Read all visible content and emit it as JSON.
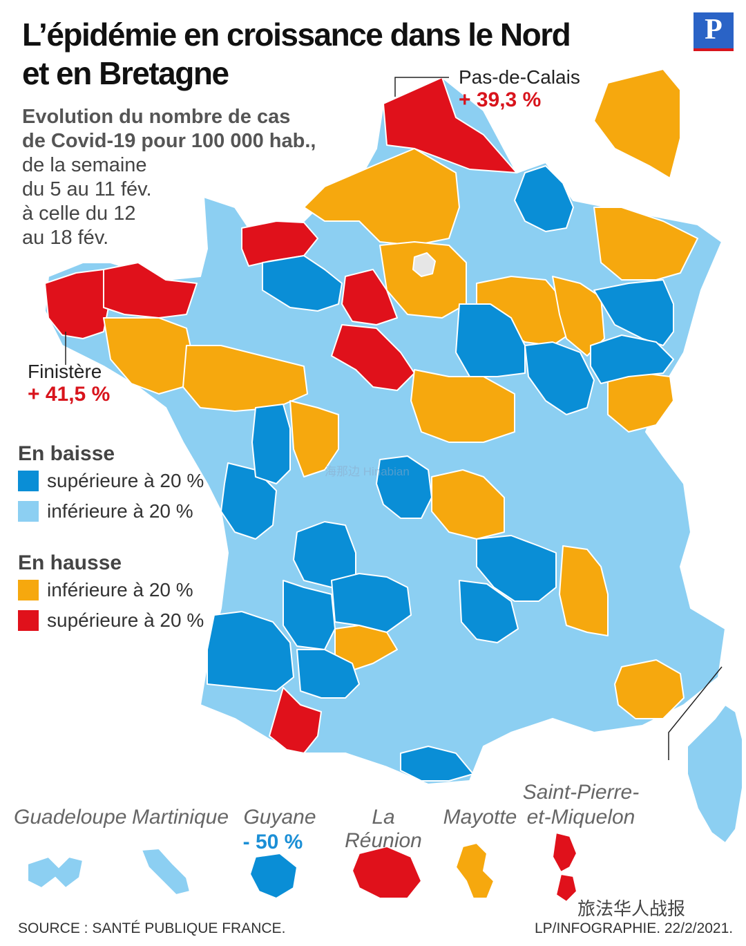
{
  "header": {
    "title_line1": "L’épidémie en croissance dans le Nord",
    "title_line2": "et en Bretagne",
    "logo": "P",
    "subtitle_bold1": "Evolution du nombre de cas",
    "subtitle_bold2": "de Covid-19 pour 100 000 hab.,",
    "subtitle_l1": "de la semaine",
    "subtitle_l2": "du 5 au 11 fév.",
    "subtitle_l3": "à celle du 12",
    "subtitle_l4": "au 18 fév."
  },
  "colors": {
    "down_strong": "#0a8ed6",
    "down_weak": "#8ccff2",
    "up_weak": "#f6a80e",
    "up_strong": "#e0111b",
    "paris": "#e6e6e6",
    "border": "#ffffff"
  },
  "legend": {
    "baisse_title": "En baisse",
    "baisse_items": [
      "supérieure à 20 %",
      "inférieure à 20 %"
    ],
    "hausse_title": "En hausse",
    "hausse_items": [
      "inférieure à 20 %",
      "supérieure à 20 %"
    ]
  },
  "callouts": {
    "pdc_name": "Pas-de-Calais",
    "pdc_value": "+ 39,3 %",
    "fin_name": "Finistère",
    "fin_value": "+ 41,5 %"
  },
  "overseas": {
    "labels": [
      "Guadeloupe",
      "Martinique",
      "Guyane",
      "La Réunion",
      "Mayotte",
      "Saint-Pierre-",
      "et-Miquelon"
    ],
    "guyane_value": "- 50 %",
    "categories": [
      "down_weak",
      "down_weak",
      "down_strong",
      "up_strong",
      "up_weak",
      "up_strong"
    ]
  },
  "footer": {
    "source": "SOURCE : SANTÉ PUBLIQUE FRANCE.",
    "credit": "LP/INFOGRAPHIE.  22/2/2021."
  },
  "watermark": {
    "hinabian": "海那边 Hinabian",
    "wechat": "旅法华人战报"
  }
}
